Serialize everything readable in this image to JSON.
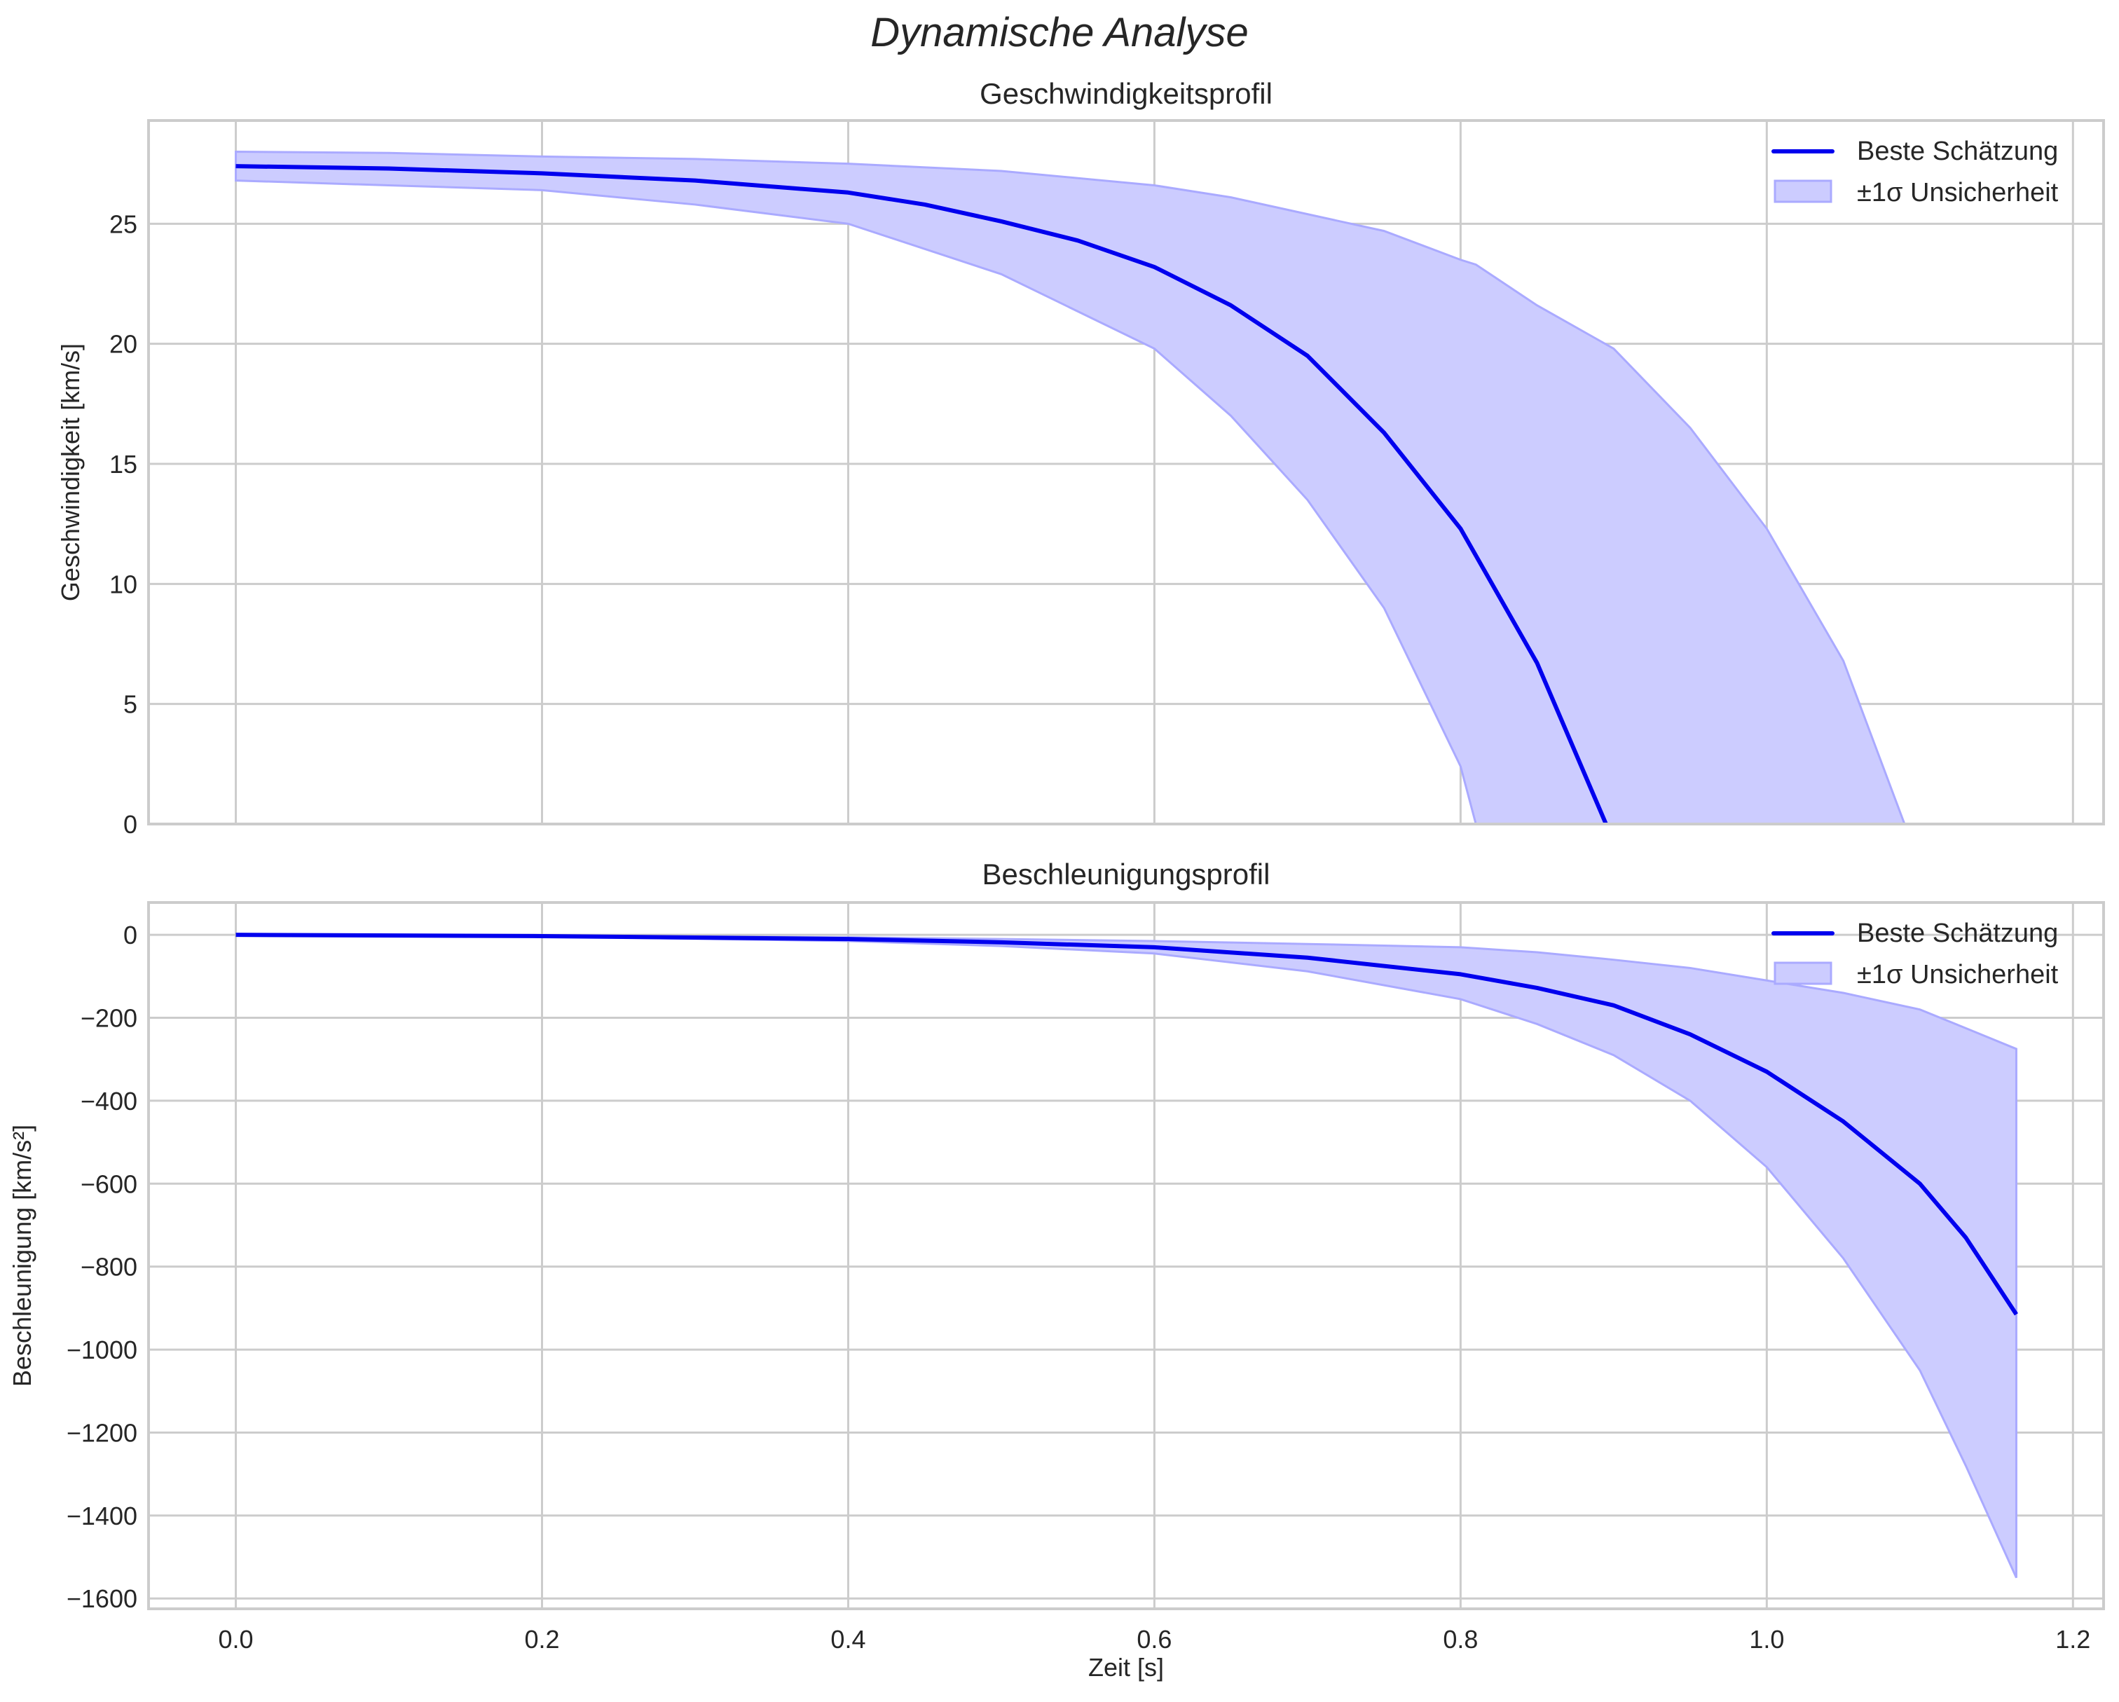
{
  "figure": {
    "suptitle": "Dynamische Analyse",
    "colors": {
      "line": "#0000ee",
      "band_fill": "#ccccff",
      "band_edge": "#aaaaff",
      "grid": "#cccccc",
      "spine": "#cccccc",
      "text": "#262626"
    }
  },
  "chart_data": [
    {
      "type": "line",
      "title": "Geschwindigkeitsprofil",
      "xlabel": "",
      "ylabel": "Geschwindigkeit [km/s]",
      "xlim": [
        -0.057,
        1.22
      ],
      "ylim": [
        0,
        29.3
      ],
      "xticks": [
        0.0,
        0.2,
        0.4,
        0.6,
        0.8,
        1.0,
        1.2
      ],
      "xtick_labels": [],
      "yticks": [
        0,
        5,
        10,
        15,
        20,
        25
      ],
      "ytick_labels": [
        "0",
        "5",
        "10",
        "15",
        "20",
        "25"
      ],
      "grid": true,
      "legend": {
        "position": "upper right",
        "entries": [
          "Beste Schätzung",
          "±1σ Unsicherheit"
        ]
      },
      "series": [
        {
          "name": "Beste Schätzung",
          "kind": "line",
          "x": [
            0.0,
            0.1,
            0.2,
            0.3,
            0.4,
            0.45,
            0.5,
            0.55,
            0.6,
            0.65,
            0.7,
            0.75,
            0.8,
            0.85,
            0.895
          ],
          "y": [
            27.4,
            27.3,
            27.1,
            26.8,
            26.3,
            25.8,
            25.1,
            24.3,
            23.2,
            21.6,
            19.5,
            16.3,
            12.3,
            6.7,
            0.0
          ]
        },
        {
          "name": "±1σ Unsicherheit",
          "kind": "band",
          "x": [
            0.0,
            0.1,
            0.2,
            0.3,
            0.4,
            0.5,
            0.6,
            0.65,
            0.7,
            0.75,
            0.8,
            0.81,
            0.85,
            0.9,
            0.95,
            1.0,
            1.05,
            1.09
          ],
          "upper": [
            28.0,
            27.95,
            27.8,
            27.7,
            27.5,
            27.2,
            26.6,
            26.1,
            25.4,
            24.7,
            23.5,
            23.3,
            21.6,
            19.8,
            16.5,
            12.3,
            6.8,
            0.0
          ],
          "lower": [
            26.8,
            26.6,
            26.4,
            25.8,
            25.0,
            22.9,
            19.8,
            17.0,
            13.5,
            9.0,
            2.4,
            0.0,
            null,
            null,
            null,
            null,
            null,
            null
          ]
        }
      ]
    },
    {
      "type": "line",
      "title": "Beschleunigungsprofil",
      "xlabel": "Zeit [s]",
      "ylabel": "Beschleunigung [km/s²]",
      "xlim": [
        -0.057,
        1.22
      ],
      "ylim": [
        -1625,
        78
      ],
      "xticks": [
        0.0,
        0.2,
        0.4,
        0.6,
        0.8,
        1.0,
        1.2
      ],
      "xtick_labels": [
        "0.0",
        "0.2",
        "0.4",
        "0.6",
        "0.8",
        "1.0",
        "1.2"
      ],
      "yticks": [
        0,
        -200,
        -400,
        -600,
        -800,
        -1000,
        -1200,
        -1400,
        -1600
      ],
      "ytick_labels": [
        "0",
        "−200",
        "−400",
        "−600",
        "−800",
        "−1000",
        "−1200",
        "−1400",
        "−1600"
      ],
      "grid": true,
      "legend": {
        "position": "upper right",
        "entries": [
          "Beste Schätzung",
          "±1σ Unsicherheit"
        ]
      },
      "series": [
        {
          "name": "Beste Schätzung",
          "kind": "line",
          "x": [
            0.0,
            0.2,
            0.4,
            0.5,
            0.6,
            0.7,
            0.8,
            0.85,
            0.9,
            0.95,
            1.0,
            1.05,
            1.1,
            1.13,
            1.163
          ],
          "y": [
            0,
            -3,
            -10,
            -18,
            -30,
            -55,
            -95,
            -128,
            -170,
            -240,
            -330,
            -450,
            -600,
            -730,
            -915
          ]
        },
        {
          "name": "±1σ Unsicherheit",
          "kind": "band",
          "x": [
            0.0,
            0.2,
            0.4,
            0.5,
            0.6,
            0.7,
            0.8,
            0.85,
            0.9,
            0.95,
            1.0,
            1.05,
            1.1,
            1.13,
            1.163
          ],
          "upper": [
            0,
            -2,
            -6,
            -10,
            -15,
            -22,
            -30,
            -42,
            -60,
            -80,
            -110,
            -140,
            -180,
            -225,
            -275
          ],
          "lower": [
            0,
            -4,
            -15,
            -27,
            -45,
            -88,
            -155,
            -215,
            -290,
            -400,
            -560,
            -780,
            -1050,
            -1280,
            -1550
          ]
        }
      ]
    }
  ]
}
